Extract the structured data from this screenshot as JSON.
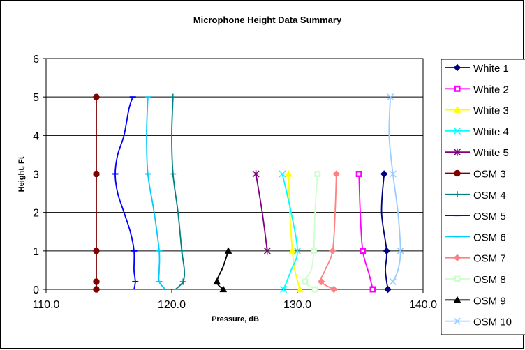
{
  "chart_data": {
    "type": "line",
    "title": "Microphone Height Data Summary",
    "xlabel": "Pressure, dB",
    "ylabel": "Height, Ft",
    "xlim": [
      110.0,
      140.0
    ],
    "ylim": [
      0,
      6
    ],
    "x_ticks": [
      "110.0",
      "120.0",
      "130.0",
      "140.0"
    ],
    "y_ticks": [
      "0",
      "1",
      "2",
      "3",
      "4",
      "5",
      "6"
    ],
    "grid": "horizontal",
    "legend_position": "right",
    "series": [
      {
        "name": "White 1",
        "color": "#000080",
        "marker": "diamond",
        "points": [
          [
            136.9,
            3
          ],
          [
            137.1,
            1
          ],
          [
            137.2,
            0
          ]
        ],
        "curve": [
          [
            136.9,
            3
          ],
          [
            136.7,
            2
          ],
          [
            137.1,
            1
          ],
          [
            137.0,
            0.5
          ],
          [
            137.2,
            0
          ]
        ]
      },
      {
        "name": "White 2",
        "color": "#ff00ff",
        "marker": "square",
        "points": [
          [
            134.9,
            3
          ],
          [
            135.2,
            1
          ],
          [
            136.0,
            0
          ]
        ],
        "curve": [
          [
            134.9,
            3
          ],
          [
            135.0,
            2
          ],
          [
            135.2,
            1
          ],
          [
            135.7,
            0.4
          ],
          [
            136.0,
            0
          ]
        ]
      },
      {
        "name": "White 3",
        "color": "#ffff00",
        "marker": "triangle",
        "points": [
          [
            129.3,
            3
          ],
          [
            129.6,
            1
          ],
          [
            130.2,
            0
          ]
        ],
        "curve": [
          [
            129.3,
            3
          ],
          [
            129.4,
            2
          ],
          [
            129.6,
            1
          ],
          [
            129.8,
            0.5
          ],
          [
            130.2,
            0
          ]
        ]
      },
      {
        "name": "White 4",
        "color": "#00ffff",
        "marker": "x",
        "points": [
          [
            128.8,
            3
          ],
          [
            130.0,
            1
          ],
          [
            128.9,
            0
          ]
        ],
        "curve": [
          [
            128.8,
            3
          ],
          [
            129.5,
            2
          ],
          [
            130.0,
            1
          ],
          [
            129.5,
            0.5
          ],
          [
            128.9,
            0
          ]
        ]
      },
      {
        "name": "White 5",
        "color": "#800080",
        "marker": "star",
        "points": [
          [
            126.7,
            3
          ],
          [
            127.6,
            1
          ]
        ],
        "curve": [
          [
            126.7,
            3
          ],
          [
            127.2,
            2
          ],
          [
            127.6,
            1
          ]
        ]
      },
      {
        "name": "OSM 3",
        "color": "#800000",
        "marker": "circle",
        "points": [
          [
            114.0,
            5
          ],
          [
            114.0,
            3
          ],
          [
            114.0,
            1
          ],
          [
            114.0,
            0.2
          ],
          [
            114.0,
            0
          ]
        ],
        "curve": [
          [
            114.0,
            5
          ],
          [
            114.0,
            3
          ],
          [
            114.0,
            1
          ],
          [
            114.0,
            0.2
          ],
          [
            114.0,
            0
          ]
        ]
      },
      {
        "name": "OSM 4",
        "color": "#008080",
        "marker": "plus",
        "points": [
          [
            120.1,
            5
          ],
          [
            120.1,
            3
          ],
          [
            120.8,
            1
          ],
          [
            120.9,
            0.2
          ]
        ],
        "curve": [
          [
            120.1,
            5
          ],
          [
            120.0,
            4
          ],
          [
            120.1,
            3
          ],
          [
            120.5,
            2
          ],
          [
            120.8,
            1
          ],
          [
            121.0,
            0.5
          ],
          [
            120.9,
            0.2
          ],
          [
            120.3,
            0
          ]
        ]
      },
      {
        "name": "OSM 5",
        "color": "#0000ff",
        "marker": "dash",
        "points": [
          [
            116.9,
            5
          ],
          [
            115.5,
            3
          ],
          [
            117.0,
            1
          ],
          [
            117.1,
            0.2
          ]
        ],
        "curve": [
          [
            116.9,
            5
          ],
          [
            116.6,
            4.7
          ],
          [
            116.2,
            4
          ],
          [
            115.7,
            3.5
          ],
          [
            115.5,
            3
          ],
          [
            115.7,
            2.5
          ],
          [
            116.2,
            2
          ],
          [
            116.7,
            1.5
          ],
          [
            117.0,
            1
          ],
          [
            117.0,
            0.5
          ],
          [
            117.1,
            0.2
          ],
          [
            117.0,
            0
          ]
        ]
      },
      {
        "name": "OSM 6",
        "color": "#00ccff",
        "marker": "dash",
        "points": [
          [
            118.1,
            5
          ],
          [
            118.1,
            3
          ],
          [
            119.0,
            1
          ],
          [
            119.0,
            0.2
          ]
        ],
        "curve": [
          [
            118.1,
            5
          ],
          [
            118.0,
            4
          ],
          [
            118.1,
            3
          ],
          [
            118.6,
            2
          ],
          [
            119.0,
            1
          ],
          [
            119.0,
            0.5
          ],
          [
            119.0,
            0.2
          ],
          [
            119.5,
            0
          ]
        ]
      },
      {
        "name": "OSM 7",
        "color": "#ff8080",
        "marker": "diamond",
        "points": [
          [
            133.1,
            3
          ],
          [
            132.8,
            1
          ],
          [
            131.9,
            0.2
          ],
          [
            132.9,
            0
          ]
        ],
        "curve": [
          [
            133.1,
            3
          ],
          [
            133.0,
            2
          ],
          [
            132.8,
            1
          ],
          [
            132.2,
            0.5
          ],
          [
            131.9,
            0.2
          ],
          [
            132.9,
            0
          ]
        ]
      },
      {
        "name": "OSM 8",
        "color": "#ccffcc",
        "marker": "square",
        "points": [
          [
            131.6,
            3
          ],
          [
            131.3,
            1
          ],
          [
            130.6,
            0.2
          ],
          [
            131.4,
            0
          ]
        ],
        "curve": [
          [
            131.6,
            3
          ],
          [
            131.4,
            2
          ],
          [
            131.3,
            1
          ],
          [
            131.1,
            0.5
          ],
          [
            130.6,
            0.2
          ],
          [
            131.4,
            0
          ]
        ]
      },
      {
        "name": "OSM 9",
        "color": "#000000",
        "marker": "triangle",
        "points": [
          [
            124.5,
            1
          ],
          [
            123.6,
            0.2
          ],
          [
            124.1,
            0
          ]
        ],
        "curve": [
          [
            124.5,
            1
          ],
          [
            124.1,
            0.6
          ],
          [
            123.6,
            0.2
          ],
          [
            124.1,
            0
          ]
        ]
      },
      {
        "name": "OSM 10",
        "color": "#99ccff",
        "marker": "x",
        "points": [
          [
            137.4,
            5
          ],
          [
            137.6,
            3
          ],
          [
            138.2,
            1
          ],
          [
            137.6,
            0.2
          ]
        ],
        "curve": [
          [
            137.4,
            5
          ],
          [
            137.3,
            4
          ],
          [
            137.6,
            3
          ],
          [
            138.0,
            2
          ],
          [
            138.2,
            1
          ],
          [
            138.0,
            0.5
          ],
          [
            137.6,
            0.2
          ]
        ]
      }
    ]
  }
}
